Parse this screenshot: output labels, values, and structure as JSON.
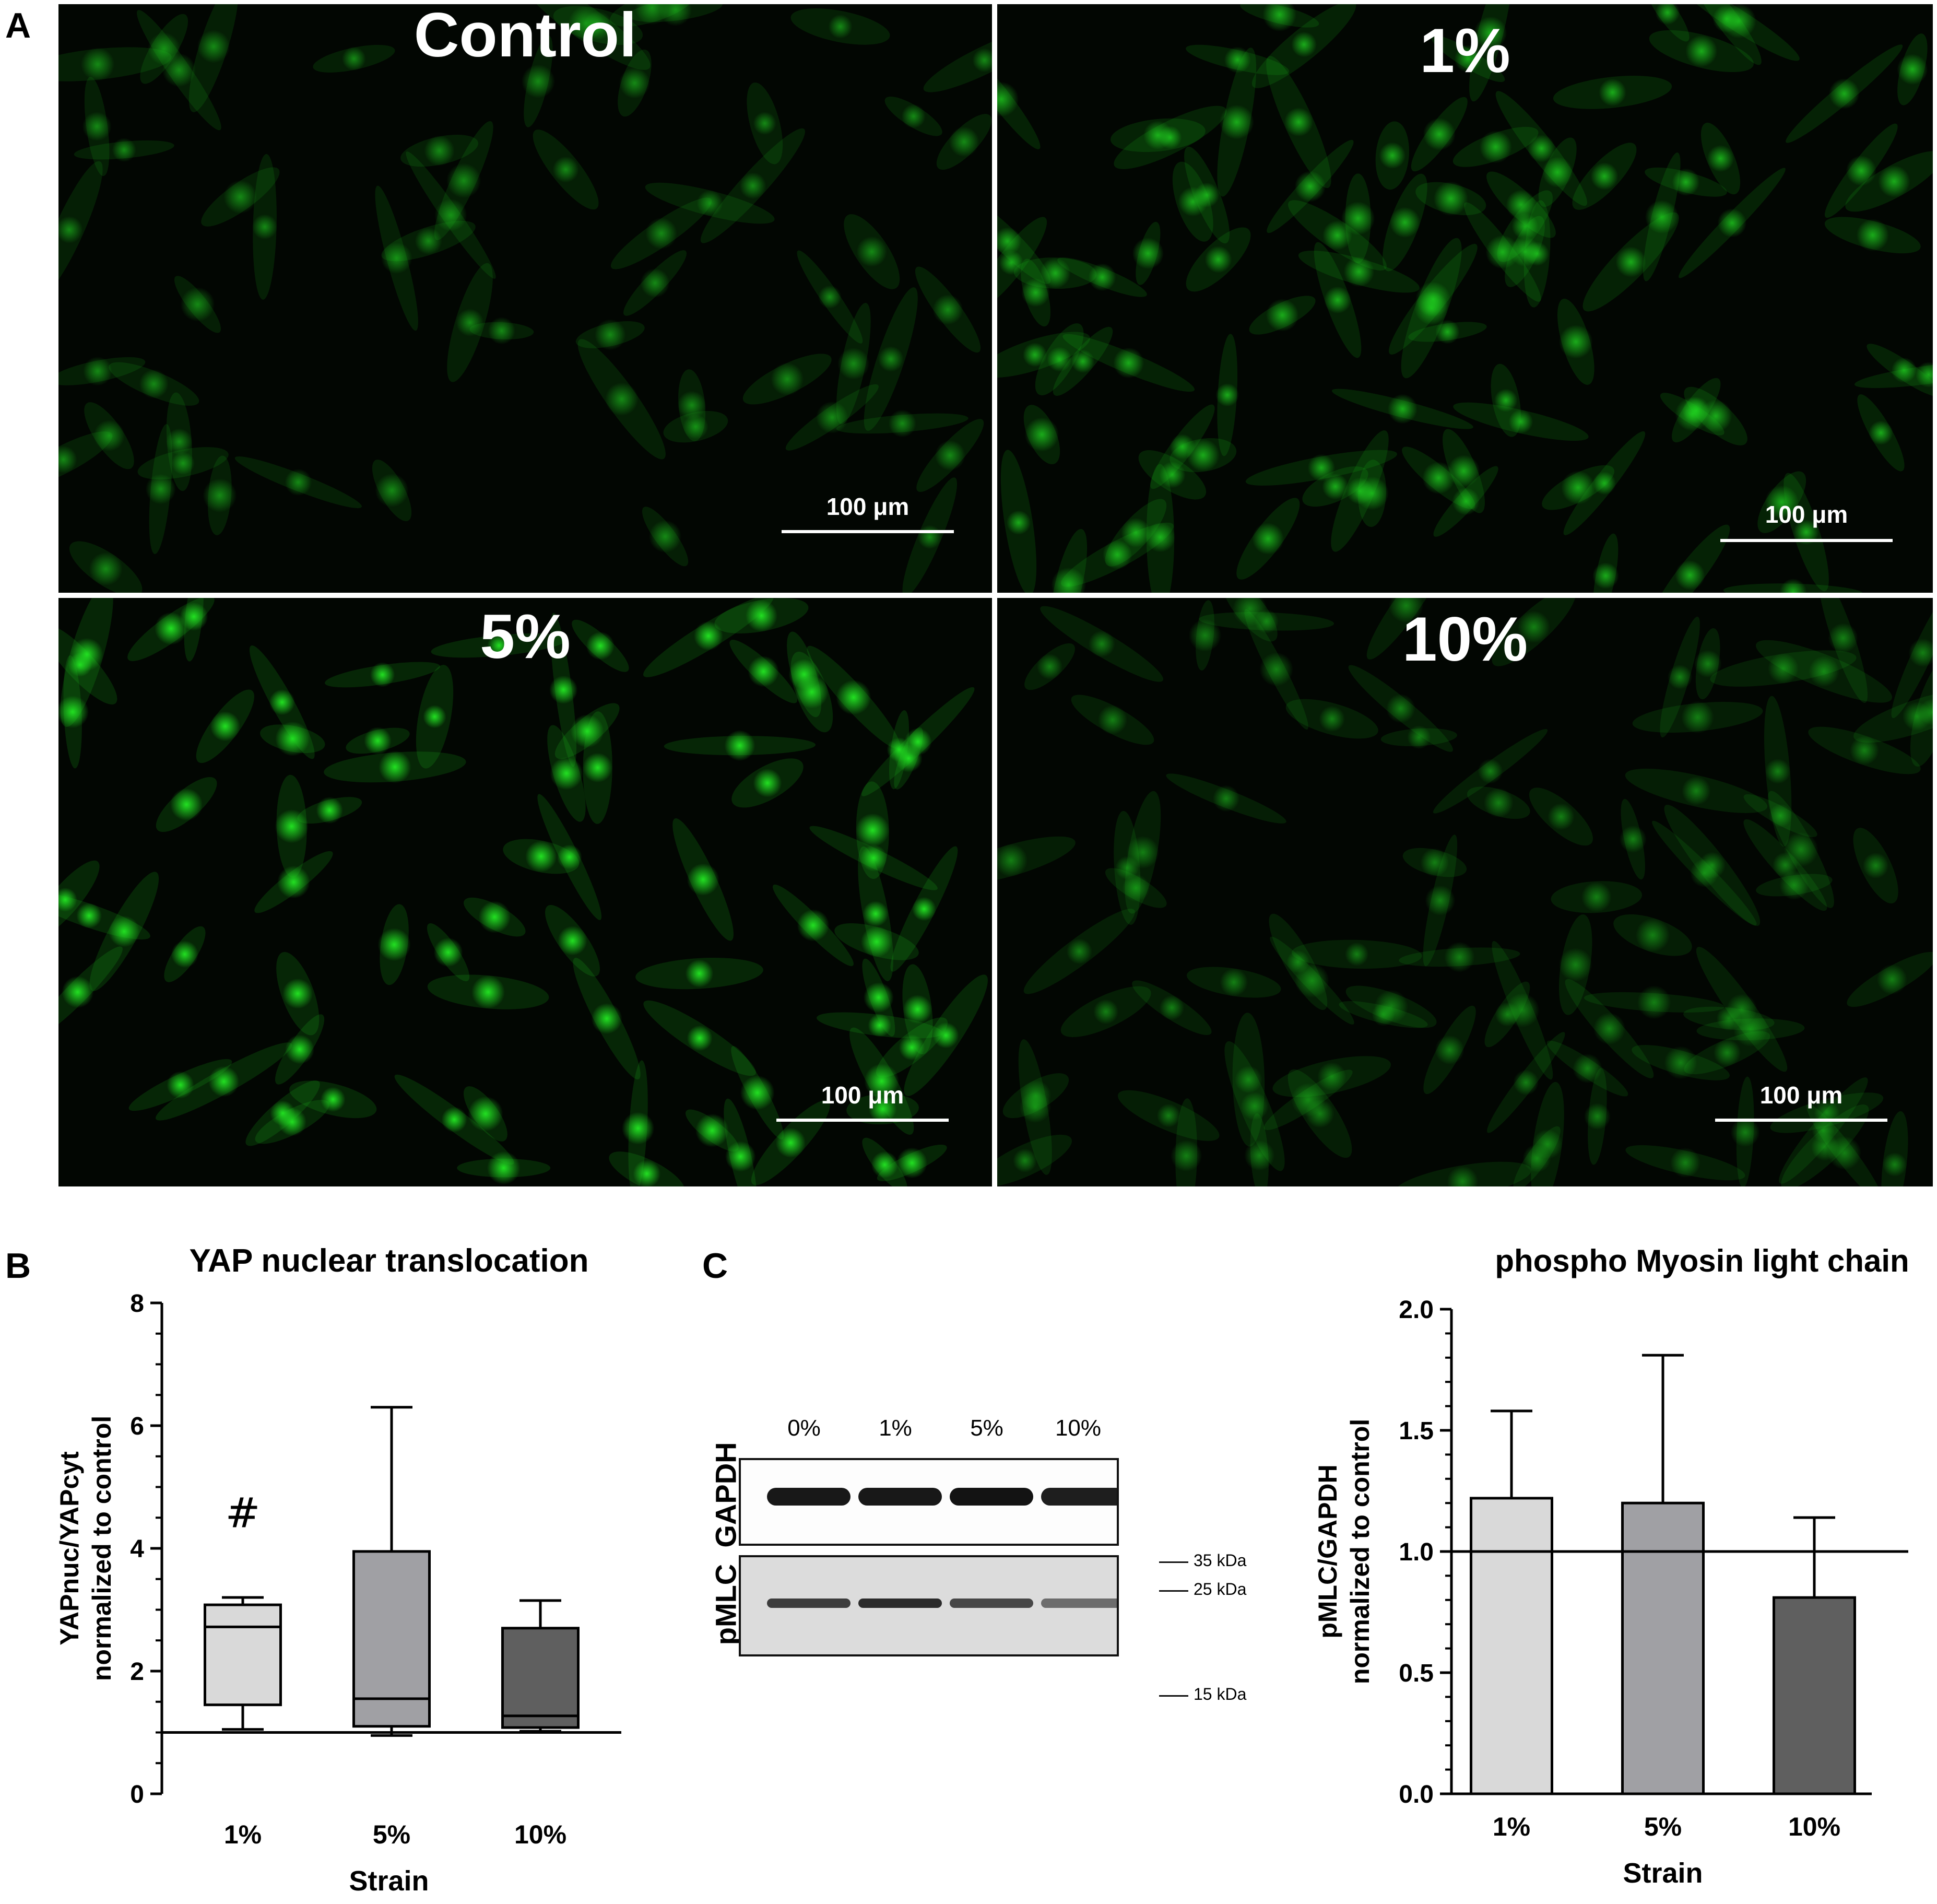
{
  "panel_letters": {
    "a": "A",
    "b": "B",
    "c": "C"
  },
  "micrographs": [
    {
      "id": "control",
      "label": "Control",
      "scale_bar": "100 μm",
      "nuclei_brightness": 0.55,
      "seed": 11,
      "count": 60
    },
    {
      "id": "1pct",
      "label": "1%",
      "scale_bar": "100 μm",
      "nuclei_brightness": 0.72,
      "seed": 23,
      "count": 95
    },
    {
      "id": "5pct",
      "label": "5%",
      "scale_bar": "100 μm",
      "nuclei_brightness": 1.0,
      "seed": 37,
      "count": 80
    },
    {
      "id": "10pct",
      "label": "10%",
      "scale_bar": "100 μm",
      "nuclei_brightness": 0.5,
      "seed": 51,
      "count": 90
    }
  ],
  "colors": {
    "fluorescence": "#22e022",
    "bar_light": "#d9d9d9",
    "bar_mid": "#a0a0a4",
    "bar_dark": "#5f5f5f"
  },
  "chart_data": [
    {
      "type": "box",
      "title": "YAP nuclear translocation",
      "xlabel": "Strain",
      "ylabel_line1": "YAPnuc/YAPcyt",
      "ylabel_line2": "normalized to control",
      "categories": [
        "1%",
        "5%",
        "10%"
      ],
      "ylim": [
        0,
        8
      ],
      "yticks": [
        0,
        2,
        4,
        6,
        8
      ],
      "reference_line": 1.0,
      "boxes": [
        {
          "min": 1.05,
          "q1": 1.45,
          "median": 2.72,
          "q3": 3.08,
          "max": 3.2,
          "color": "#d9d9d9"
        },
        {
          "min": 0.95,
          "q1": 1.1,
          "median": 1.55,
          "q3": 3.95,
          "max": 6.3,
          "color": "#a0a0a4"
        },
        {
          "min": 1.02,
          "q1": 1.08,
          "median": 1.27,
          "q3": 2.7,
          "max": 3.15,
          "color": "#5f5f5f"
        }
      ],
      "annotation": {
        "text": "#",
        "category": "1%",
        "y": 4.6
      }
    },
    {
      "type": "bar",
      "title": "phospho Myosin light chain",
      "xlabel": "Strain",
      "ylabel_line1": "pMLC/GAPDH",
      "ylabel_line2": "normalized to control",
      "categories": [
        "1%",
        "5%",
        "10%"
      ],
      "values": [
        1.22,
        1.2,
        0.81
      ],
      "error_upper": [
        1.58,
        1.81,
        1.14
      ],
      "colors": [
        "#d9d9d9",
        "#a0a0a4",
        "#5f5f5f"
      ],
      "ylim": [
        0,
        2.0
      ],
      "yticks": [
        0.0,
        0.5,
        1.0,
        1.5,
        2.0
      ],
      "ytick_labels": [
        "0.0",
        "0.5",
        "1.0",
        "1.5",
        "2.0"
      ],
      "reference_line": 1.0
    }
  ],
  "western_blot": {
    "lanes": [
      "0%",
      "1%",
      "5%",
      "10%"
    ],
    "rows": [
      {
        "name": "GAPDH",
        "intensity": [
          0.95,
          0.95,
          0.98,
          0.92
        ]
      },
      {
        "name": "pMLC",
        "intensity": [
          0.75,
          0.85,
          0.7,
          0.5
        ]
      }
    ],
    "markers": [
      "35 kDa",
      "25 kDa",
      "15 kDa"
    ]
  }
}
